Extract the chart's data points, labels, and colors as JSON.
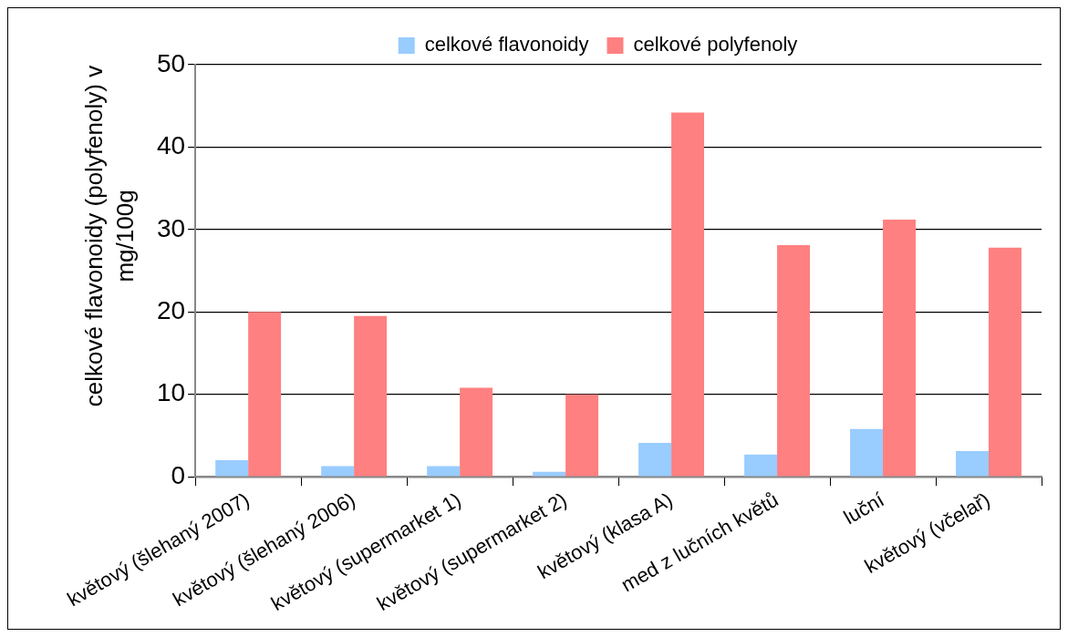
{
  "chart_data": {
    "type": "bar",
    "ylabel": "celkové flavonoidy (polyfenoly) v mg/100g",
    "categories": [
      "květový (šlehaný 2007)",
      "květový (šlehaný 2006)",
      "květový (supermarket 1)",
      "květový (supermarket 2)",
      "květový (klasa A)",
      "med z lučních květů",
      "luční",
      "květový (včelař)"
    ],
    "series": [
      {
        "name": "celkové flavonoidy",
        "color": "#99ccff",
        "values": [
          2.0,
          1.3,
          1.3,
          0.6,
          4.1,
          2.7,
          5.8,
          3.1
        ]
      },
      {
        "name": "celkové polyfenoly",
        "color": "#ff8080",
        "values": [
          20.0,
          19.5,
          10.8,
          10.0,
          44.2,
          28.1,
          31.2,
          27.8
        ]
      }
    ],
    "ylim": [
      0,
      50
    ],
    "yticks": [
      0,
      10,
      20,
      30,
      40,
      50
    ],
    "grid": "y",
    "legend": "top"
  }
}
